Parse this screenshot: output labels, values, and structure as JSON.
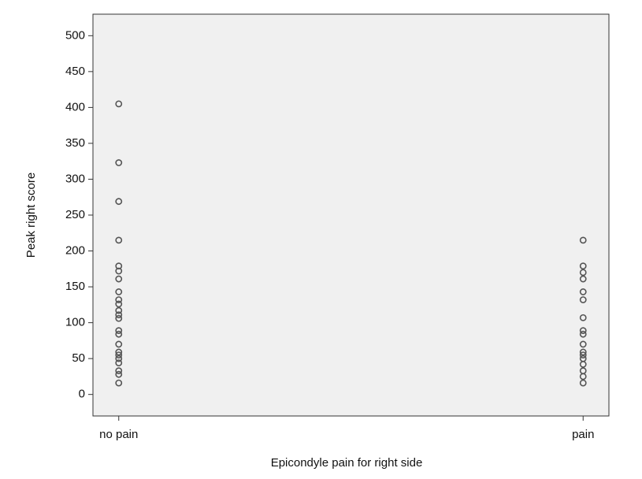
{
  "chart_data": {
    "type": "strip",
    "x_label": "Epicondyle pain for right side",
    "y_label": "Peak right score",
    "categories": [
      "no pain",
      "pain"
    ],
    "values": [
      [
        405,
        323,
        269,
        215,
        179,
        172,
        161,
        143,
        132,
        126,
        117,
        111,
        106,
        89,
        84,
        70,
        59,
        55,
        50,
        44,
        33,
        28,
        16
      ],
      [
        215,
        179,
        170,
        161,
        143,
        132,
        107,
        89,
        84,
        70,
        59,
        55,
        50,
        42,
        33,
        25,
        16
      ]
    ],
    "color": "#555555",
    "ylim": [
      -30,
      530
    ],
    "yticks": [
      0,
      50,
      100,
      150,
      200,
      250,
      300,
      350,
      400,
      450,
      500
    ]
  }
}
